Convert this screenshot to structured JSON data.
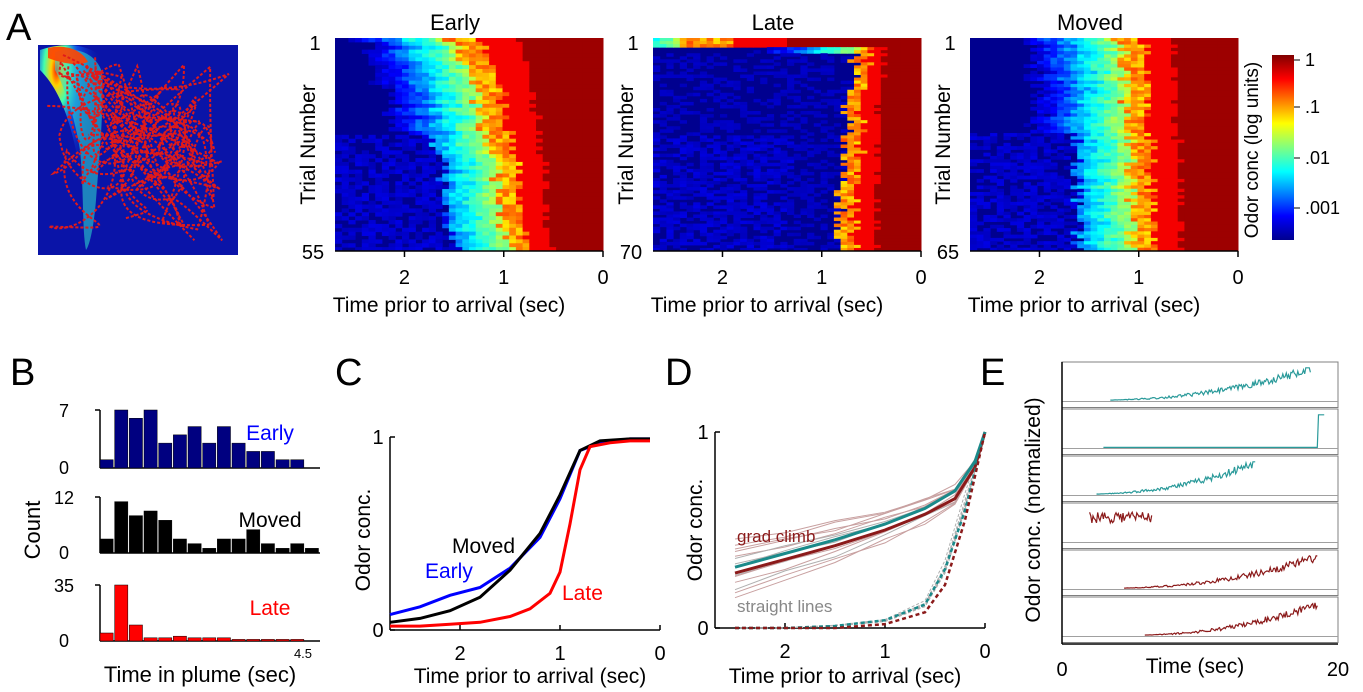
{
  "panels": {
    "A": {
      "label": "A",
      "heatmaps": [
        {
          "title": "Early",
          "trial_first": "1",
          "trial_last": "55",
          "n_trials": 55,
          "onset_mean": 0.95,
          "onset_spread_high": 1.55,
          "onset_spread_low": 0.15
        },
        {
          "title": "Late",
          "trial_first": "1",
          "trial_last": "70",
          "n_trials": 70,
          "onset_mean": 0.85,
          "onset_spread_high": 0.6,
          "onset_spread_low": 0.05
        },
        {
          "title": "Moved",
          "trial_first": "1",
          "trial_last": "65",
          "n_trials": 65,
          "onset_mean": 1.05,
          "onset_spread_high": 1.2,
          "onset_spread_low": 0.15
        }
      ],
      "ylabel": "Trial Number",
      "xlabel": "Time prior to arrival (sec)",
      "xticks": [
        "2",
        "1",
        "0"
      ],
      "colorbar": {
        "label": "Odor conc (log units)",
        "ticks": [
          "1",
          ".1",
          ".01",
          ".001"
        ]
      }
    },
    "B": {
      "label": "B",
      "ylabel": "Count",
      "xlabel": "Time in plume (sec)",
      "x_end_label": "4.5",
      "histograms": [
        {
          "name": "Early",
          "ymax_label": "7",
          "zero_label": "0",
          "color": "#000080",
          "label_color": "#0000ff",
          "values": [
            1,
            7,
            6,
            7,
            3,
            4,
            5,
            3,
            5,
            3,
            2,
            2,
            1,
            1
          ]
        },
        {
          "name": "Moved",
          "ymax_label": "12",
          "zero_label": "0",
          "color": "#000000",
          "label_color": "#000000",
          "values": [
            3,
            11,
            8,
            9,
            7,
            3,
            2,
            1,
            3,
            3,
            5,
            2,
            1,
            2,
            1
          ]
        },
        {
          "name": "Late",
          "ymax_label": "35",
          "zero_label": "0",
          "color": "#ff0000",
          "label_color": "#ff0000",
          "values": [
            5,
            35,
            10,
            2,
            2,
            3,
            2,
            2,
            2,
            1,
            1,
            1,
            1,
            1
          ]
        }
      ]
    },
    "C": {
      "label": "C",
      "ylabel": "Odor conc.",
      "xlabel": "Time prior to arrival (sec)",
      "xticks": [
        "2",
        "1",
        "0"
      ],
      "yticks": [
        "1",
        "0"
      ]
    },
    "D": {
      "label": "D",
      "ylabel": "Odor conc.",
      "xlabel": "Time prior to arrival (sec)",
      "xticks": [
        "2",
        "1",
        "0"
      ],
      "yticks": [
        "1",
        "0"
      ],
      "annotations": {
        "grad_climb": "grad climb",
        "straight_lines": "straight lines"
      }
    },
    "E": {
      "label": "E",
      "ylabel": "Odor conc. (normalized)",
      "xlabel": "Time (sec)",
      "xticks": [
        "0",
        "20"
      ]
    }
  },
  "chart_data": [
    {
      "type": "heatmap",
      "panel": "A",
      "series_titles": [
        "Early",
        "Late",
        "Moved"
      ],
      "xlabel": "Time prior to arrival (sec)",
      "ylabel": "Trial Number",
      "xlim": [
        2.7,
        0
      ],
      "trials": [
        55,
        70,
        65
      ],
      "colorbar_label": "Odor conc (log units)",
      "colorbar_ticks": [
        "1",
        ".1",
        ".01",
        ".001"
      ]
    },
    {
      "type": "bar",
      "panel": "B",
      "xlabel": "Time in plume (sec)",
      "ylabel": "Count",
      "series": [
        {
          "name": "Early",
          "values": [
            1,
            7,
            6,
            7,
            3,
            4,
            5,
            3,
            5,
            3,
            2,
            2,
            1,
            1
          ]
        },
        {
          "name": "Moved",
          "values": [
            3,
            11,
            8,
            9,
            7,
            3,
            2,
            1,
            3,
            3,
            5,
            2,
            1,
            2,
            1
          ]
        },
        {
          "name": "Late",
          "values": [
            5,
            35,
            10,
            2,
            2,
            3,
            2,
            2,
            2,
            1,
            1,
            1,
            1,
            1
          ]
        }
      ]
    },
    {
      "type": "line",
      "panel": "C",
      "xlabel": "Time prior to arrival (sec)",
      "ylabel": "Odor conc.",
      "xlim": [
        2.7,
        0
      ],
      "ylim": [
        0,
        1
      ],
      "series": [
        {
          "name": "Early",
          "color": "#0000ff",
          "x": [
            2.7,
            2.4,
            2.1,
            1.8,
            1.5,
            1.2,
            1.0,
            0.8,
            0.6,
            0.3,
            0.1
          ],
          "y": [
            0.08,
            0.12,
            0.18,
            0.22,
            0.32,
            0.48,
            0.68,
            0.93,
            0.97,
            0.99,
            0.99
          ]
        },
        {
          "name": "Moved",
          "color": "#000000",
          "x": [
            2.7,
            2.4,
            2.1,
            1.8,
            1.5,
            1.2,
            1.0,
            0.8,
            0.6,
            0.3,
            0.1
          ],
          "y": [
            0.04,
            0.06,
            0.1,
            0.17,
            0.31,
            0.5,
            0.7,
            0.93,
            0.98,
            0.99,
            0.99
          ]
        },
        {
          "name": "Late",
          "color": "#ff0000",
          "x": [
            2.7,
            2.4,
            2.1,
            1.8,
            1.5,
            1.3,
            1.1,
            1.0,
            0.9,
            0.8,
            0.7,
            0.5,
            0.3,
            0.1
          ],
          "y": [
            0.02,
            0.02,
            0.03,
            0.04,
            0.07,
            0.11,
            0.19,
            0.3,
            0.55,
            0.83,
            0.95,
            0.97,
            0.98,
            0.98
          ]
        }
      ]
    },
    {
      "type": "line",
      "panel": "D",
      "xlabel": "Time prior to arrival (sec)",
      "ylabel": "Odor conc.",
      "xlim": [
        2.7,
        0
      ],
      "ylim": [
        0,
        1
      ],
      "series": [
        {
          "name": "grad climb",
          "color": "#8b1a1a",
          "x": [
            2.5,
            2.0,
            1.5,
            1.0,
            0.6,
            0.3,
            0.1,
            0.0
          ],
          "y": [
            0.28,
            0.35,
            0.42,
            0.5,
            0.58,
            0.66,
            0.82,
            1.0
          ]
        },
        {
          "color": "#1a8a8a",
          "x": [
            2.5,
            2.0,
            1.5,
            1.0,
            0.6,
            0.3,
            0.1,
            0.0
          ],
          "y": [
            0.31,
            0.38,
            0.45,
            0.53,
            0.61,
            0.7,
            0.85,
            1.0
          ]
        },
        {
          "color": "#1a8a8a",
          "dashed": true,
          "x": [
            2.5,
            2.0,
            1.5,
            1.0,
            0.6,
            0.4,
            0.2,
            0.0
          ],
          "y": [
            0.0,
            0.0,
            0.01,
            0.04,
            0.12,
            0.3,
            0.6,
            1.0
          ]
        },
        {
          "color": "#8b1a1a",
          "dashed": true,
          "x": [
            2.5,
            2.0,
            1.5,
            1.0,
            0.6,
            0.4,
            0.2,
            0.0
          ],
          "y": [
            0.0,
            0.0,
            0.0,
            0.02,
            0.08,
            0.22,
            0.55,
            1.0
          ]
        }
      ]
    },
    {
      "type": "line",
      "panel": "E",
      "xlabel": "Time (sec)",
      "ylabel": "Odor conc. (normalized)",
      "xlim": [
        0,
        20
      ],
      "series": [
        {
          "color": "#2a9a9a",
          "x_start": 3.5,
          "x_end": 18.0
        },
        {
          "color": "#2a9a9a",
          "x_start": 3.0,
          "x_end": 19.0
        },
        {
          "color": "#2a9a9a",
          "x_start": 2.5,
          "x_end": 14.0
        },
        {
          "color": "#8b1a1a",
          "x_start": 2.0,
          "x_end": 6.5
        },
        {
          "color": "#8b1a1a",
          "x_start": 4.5,
          "x_end": 18.5
        },
        {
          "color": "#8b1a1a",
          "x_start": 6.0,
          "x_end": 18.5
        }
      ]
    }
  ]
}
